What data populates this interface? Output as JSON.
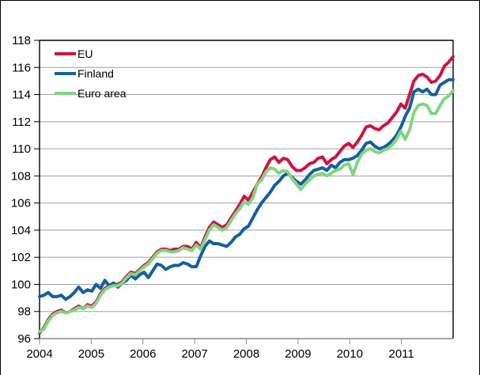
{
  "window": {
    "background": "#ffffff",
    "frame_color": "#000000",
    "gridline_color": "#a0a0a0",
    "axis_color": "#8c8c8c",
    "text_color": "#000000"
  },
  "chart_data": {
    "type": "line",
    "title": "",
    "x_unit": "month",
    "x_start": "2004M01",
    "x_end": "2011M12",
    "x_tick_labels": [
      "2004",
      "2005",
      "2006",
      "2007",
      "2008",
      "2009",
      "2010",
      "2011"
    ],
    "ylim": [
      96,
      118
    ],
    "y_tick_step": 2,
    "grid": "horizontal",
    "legend_position": "top-left-inside",
    "series": [
      {
        "name": "EU",
        "color": "#CE1442",
        "values": [
          96.4,
          96.8,
          97.4,
          97.8,
          98.0,
          98.1,
          97.9,
          98.0,
          98.2,
          98.4,
          98.2,
          98.5,
          98.4,
          98.7,
          99.3,
          99.7,
          99.9,
          100.0,
          100.0,
          100.2,
          100.6,
          100.9,
          100.8,
          101.1,
          101.4,
          101.6,
          102.0,
          102.4,
          102.6,
          102.6,
          102.5,
          102.6,
          102.6,
          102.8,
          102.8,
          102.6,
          103.1,
          102.7,
          103.5,
          104.2,
          104.6,
          104.4,
          104.2,
          104.4,
          104.9,
          105.4,
          105.9,
          106.5,
          106.2,
          106.8,
          107.4,
          107.9,
          108.6,
          109.2,
          109.4,
          109.0,
          109.3,
          109.2,
          108.7,
          108.4,
          108.4,
          108.6,
          108.9,
          109.0,
          109.3,
          109.4,
          108.9,
          109.2,
          109.4,
          109.8,
          110.2,
          110.4,
          110.1,
          110.5,
          111.0,
          111.6,
          111.7,
          111.5,
          111.4,
          111.7,
          111.9,
          112.3,
          112.7,
          113.3,
          113.0,
          114.0,
          115.0,
          115.4,
          115.5,
          115.3,
          114.9,
          115.0,
          115.4,
          116.1,
          116.4,
          116.8
        ]
      },
      {
        "name": "Finland",
        "color": "#155F9F",
        "values": [
          99.1,
          99.2,
          99.4,
          99.1,
          99.1,
          99.2,
          98.9,
          99.1,
          99.4,
          99.8,
          99.4,
          99.6,
          99.5,
          100.0,
          99.7,
          100.3,
          99.9,
          100.1,
          99.8,
          100.1,
          100.3,
          100.7,
          100.4,
          100.7,
          100.9,
          100.5,
          101.0,
          101.5,
          101.4,
          101.1,
          101.3,
          101.4,
          101.4,
          101.6,
          101.5,
          101.3,
          101.3,
          102.1,
          102.8,
          103.2,
          103.0,
          103.0,
          102.9,
          102.8,
          103.1,
          103.5,
          103.7,
          104.1,
          104.3,
          104.9,
          105.5,
          106.0,
          106.4,
          106.8,
          107.3,
          107.6,
          108.0,
          108.2,
          107.9,
          107.6,
          107.4,
          107.7,
          108.1,
          108.4,
          108.5,
          108.6,
          108.4,
          108.8,
          108.6,
          109.0,
          109.2,
          109.2,
          109.3,
          109.5,
          109.9,
          110.4,
          110.5,
          110.2,
          110.0,
          110.1,
          110.3,
          110.6,
          111.0,
          111.6,
          112.4,
          113.0,
          114.2,
          114.4,
          114.2,
          114.4,
          114.0,
          114.0,
          114.7,
          114.9,
          115.1,
          115.1
        ]
      },
      {
        "name": "Euro area",
        "color": "#80D680",
        "values": [
          96.5,
          96.7,
          97.3,
          97.7,
          97.9,
          98.0,
          97.9,
          98.0,
          98.1,
          98.3,
          98.2,
          98.4,
          98.3,
          98.6,
          99.2,
          99.6,
          99.8,
          99.9,
          99.9,
          100.1,
          100.5,
          100.8,
          100.7,
          101.0,
          101.3,
          101.5,
          101.9,
          102.3,
          102.5,
          102.5,
          102.4,
          102.4,
          102.5,
          102.7,
          102.6,
          102.5,
          102.9,
          102.6,
          103.3,
          104.0,
          104.4,
          104.2,
          104.0,
          104.2,
          104.7,
          105.2,
          105.6,
          106.1,
          105.9,
          106.4,
          107.4,
          107.7,
          108.3,
          108.6,
          108.5,
          108.2,
          108.4,
          108.3,
          107.8,
          107.4,
          107.0,
          107.4,
          107.7,
          108.0,
          108.1,
          108.2,
          108.0,
          108.2,
          108.4,
          108.5,
          108.8,
          108.9,
          108.1,
          109.0,
          109.6,
          109.9,
          110.0,
          109.8,
          109.7,
          109.9,
          110.0,
          110.3,
          110.7,
          111.3,
          110.7,
          111.4,
          112.7,
          113.2,
          113.3,
          113.2,
          112.6,
          112.6,
          113.2,
          113.7,
          113.9,
          114.3
        ]
      }
    ]
  }
}
